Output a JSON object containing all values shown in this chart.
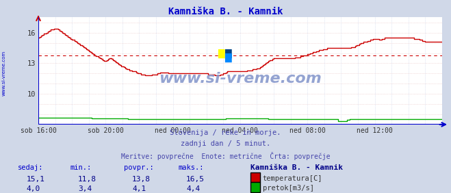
{
  "title": "Kamniška B. - Kamnik",
  "title_color": "#0000cc",
  "bg_color": "#d0d8e8",
  "plot_bg_color": "#ffffff",
  "grid_color_h": "#e8c0c0",
  "grid_color_v": "#c8d0e8",
  "xlabel_ticks": [
    "sob 16:00",
    "sob 20:00",
    "ned 00:00",
    "ned 04:00",
    "ned 08:00",
    "ned 12:00"
  ],
  "yticks": [
    10,
    13,
    16
  ],
  "ylim_min": 7.0,
  "ylim_max": 17.5,
  "xlim_min": 0,
  "xlim_max": 288,
  "tick_positions": [
    0,
    48,
    96,
    144,
    192,
    240
  ],
  "avg_temp": 13.8,
  "watermark_text": "www.si-vreme.com",
  "info_line1": "Slovenija / reke in morje.",
  "info_line2": "zadnji dan / 5 minut.",
  "info_line3": "Meritve: povprečne  Enote: metrične  Črta: povprečje",
  "info_color": "#4444aa",
  "table_headers": [
    "sedaj:",
    "min.:",
    "povpr.:",
    "maks.:"
  ],
  "table_header_color": "#0000cc",
  "table_values_temp": [
    "15,1",
    "11,8",
    "13,8",
    "16,5"
  ],
  "table_values_flow": [
    "4,0",
    "3,4",
    "4,1",
    "4,4"
  ],
  "table_value_color": "#000088",
  "station_label": "Kamniška B. - Kamnik",
  "station_label_color": "#000088",
  "legend_temp_color": "#cc0000",
  "legend_flow_color": "#00aa00",
  "legend_temp_label": "temperatura[C]",
  "legend_flow_label": "pretok[m3/s]",
  "temp_color": "#cc0000",
  "flow_color": "#00aa00",
  "axis_color": "#0000cc",
  "sidebar_color": "#0000cc",
  "sidebar_text": "www.si-vreme.com",
  "temp_data": [
    15.5,
    15.6,
    15.7,
    15.8,
    15.9,
    15.9,
    16.0,
    16.1,
    16.2,
    16.3,
    16.3,
    16.4,
    16.4,
    16.4,
    16.3,
    16.2,
    16.1,
    16.0,
    15.9,
    15.8,
    15.7,
    15.6,
    15.5,
    15.4,
    15.3,
    15.3,
    15.2,
    15.1,
    15.0,
    14.9,
    14.8,
    14.7,
    14.6,
    14.5,
    14.4,
    14.3,
    14.2,
    14.1,
    14.0,
    13.9,
    13.8,
    13.7,
    13.7,
    13.6,
    13.5,
    13.4,
    13.3,
    13.2,
    13.2,
    13.3,
    13.4,
    13.5,
    13.4,
    13.3,
    13.2,
    13.1,
    13.0,
    12.9,
    12.8,
    12.7,
    12.7,
    12.6,
    12.5,
    12.4,
    12.4,
    12.3,
    12.3,
    12.2,
    12.2,
    12.2,
    12.1,
    12.0,
    12.0,
    11.9,
    11.9,
    11.9,
    11.8,
    11.8,
    11.8,
    11.8,
    11.8,
    11.9,
    11.9,
    11.9,
    11.9,
    12.0,
    12.0,
    12.1,
    12.1,
    12.1,
    12.1,
    12.1,
    12.1,
    12.0,
    12.0,
    12.0,
    12.0,
    12.0,
    12.0,
    12.0,
    12.0,
    12.0,
    12.0,
    12.0,
    12.0,
    12.0,
    12.0,
    12.0,
    12.0,
    12.0,
    12.0,
    12.0,
    12.0,
    12.0,
    12.0,
    12.0,
    12.0,
    12.0,
    12.0,
    12.0,
    12.0,
    11.9,
    11.9,
    11.9,
    11.9,
    11.9,
    11.8,
    11.8,
    11.8,
    11.8,
    11.9,
    11.9,
    12.0,
    12.0,
    12.1,
    12.2,
    12.2,
    12.2,
    12.2,
    12.2,
    12.2,
    12.2,
    12.2,
    12.2,
    12.2,
    12.2,
    12.2,
    12.2,
    12.2,
    12.3,
    12.3,
    12.3,
    12.3,
    12.4,
    12.4,
    12.4,
    12.5,
    12.5,
    12.6,
    12.7,
    12.8,
    12.9,
    13.0,
    13.1,
    13.2,
    13.3,
    13.3,
    13.4,
    13.5,
    13.5,
    13.5,
    13.5,
    13.5,
    13.5,
    13.5,
    13.5,
    13.5,
    13.5,
    13.5,
    13.5,
    13.5,
    13.5,
    13.5,
    13.6,
    13.6,
    13.6,
    13.6,
    13.7,
    13.7,
    13.8,
    13.8,
    13.8,
    13.9,
    13.9,
    14.0,
    14.0,
    14.1,
    14.1,
    14.2,
    14.2,
    14.3,
    14.3,
    14.3,
    14.4,
    14.4,
    14.4,
    14.5,
    14.5,
    14.5,
    14.5,
    14.5,
    14.5,
    14.5,
    14.5,
    14.5,
    14.5,
    14.5,
    14.5,
    14.5,
    14.5,
    14.5,
    14.5,
    14.5,
    14.6,
    14.6,
    14.6,
    14.7,
    14.8,
    14.8,
    14.9,
    15.0,
    15.0,
    15.1,
    15.1,
    15.1,
    15.2,
    15.2,
    15.3,
    15.3,
    15.4,
    15.4,
    15.4,
    15.4,
    15.3,
    15.3,
    15.4,
    15.4,
    15.5,
    15.5,
    15.5,
    15.5,
    15.5,
    15.5,
    15.5,
    15.5,
    15.5,
    15.5,
    15.5,
    15.5,
    15.5,
    15.5,
    15.5,
    15.5,
    15.5,
    15.5,
    15.5,
    15.5,
    15.5,
    15.4,
    15.4,
    15.4,
    15.4,
    15.3,
    15.3,
    15.2,
    15.2,
    15.1,
    15.1,
    15.1,
    15.1,
    15.1,
    15.1,
    15.1,
    15.1,
    15.1,
    15.1,
    15.1,
    15.1,
    15.1
  ],
  "flow_data": [
    4.2,
    4.2,
    4.2,
    4.2,
    4.2,
    4.2,
    4.2,
    4.2,
    4.2,
    4.2,
    4.2,
    4.2,
    4.2,
    4.2,
    4.2,
    4.2,
    4.2,
    4.2,
    4.2,
    4.2,
    4.2,
    4.2,
    4.2,
    4.2,
    4.2,
    4.2,
    4.2,
    4.2,
    4.2,
    4.2,
    4.2,
    4.2,
    4.2,
    4.2,
    4.2,
    4.2,
    4.2,
    4.2,
    4.1,
    4.1,
    4.1,
    4.1,
    4.1,
    4.1,
    4.1,
    4.1,
    4.1,
    4.1,
    4.1,
    4.1,
    4.1,
    4.1,
    4.1,
    4.1,
    4.1,
    4.1,
    4.1,
    4.1,
    4.1,
    4.1,
    4.1,
    4.1,
    4.1,
    4.1,
    4.0,
    4.0,
    4.0,
    4.0,
    4.0,
    4.0,
    4.0,
    4.0,
    4.0,
    4.0,
    4.0,
    4.0,
    4.0,
    4.0,
    4.0,
    4.0,
    4.0,
    4.0,
    4.0,
    4.0,
    4.0,
    4.0,
    4.0,
    4.0,
    4.0,
    4.0,
    4.0,
    4.0,
    4.0,
    4.0,
    4.0,
    4.0,
    4.0,
    4.0,
    4.0,
    4.0,
    4.0,
    4.0,
    4.0,
    4.0,
    4.0,
    4.0,
    4.0,
    4.0,
    4.0,
    4.0,
    4.0,
    4.0,
    4.0,
    4.0,
    4.0,
    4.0,
    4.0,
    4.0,
    4.0,
    4.0,
    4.0,
    4.0,
    4.0,
    4.0,
    4.0,
    4.0,
    4.0,
    4.0,
    4.0,
    4.0,
    4.0,
    4.0,
    4.0,
    4.0,
    4.1,
    4.1,
    4.1,
    4.1,
    4.1,
    4.1,
    4.1,
    4.1,
    4.1,
    4.1,
    4.1,
    4.1,
    4.1,
    4.1,
    4.1,
    4.1,
    4.1,
    4.1,
    4.1,
    4.1,
    4.1,
    4.1,
    4.1,
    4.1,
    4.1,
    4.1,
    4.1,
    4.1,
    4.1,
    4.1,
    4.0,
    4.0,
    4.0,
    4.0,
    4.0,
    4.0,
    4.0,
    4.0,
    4.0,
    4.0,
    4.0,
    4.0,
    4.0,
    4.0,
    4.0,
    4.0,
    4.0,
    4.0,
    4.0,
    4.0,
    4.0,
    4.0,
    4.0,
    4.0,
    4.0,
    4.0,
    4.0,
    4.0,
    4.0,
    4.0,
    4.0,
    4.0,
    4.0,
    4.0,
    4.0,
    4.0,
    4.0,
    4.0,
    4.0,
    4.0,
    4.0,
    4.0,
    3.9,
    3.9,
    3.9,
    3.9,
    3.9,
    3.9,
    3.9,
    3.9,
    3.5,
    3.5,
    3.5,
    3.6,
    3.6,
    3.6,
    3.8,
    3.8,
    3.9,
    3.9,
    3.9,
    3.9,
    3.9,
    3.9,
    3.9,
    3.9,
    3.9,
    3.9,
    3.9,
    3.9,
    3.9,
    4.0,
    4.0,
    4.0,
    4.0,
    4.0,
    4.0,
    4.0,
    4.0,
    4.0,
    4.0,
    4.0,
    4.0,
    4.0,
    4.0,
    4.0,
    4.0,
    4.0,
    4.0,
    4.0,
    4.0,
    4.0,
    4.0,
    4.0,
    4.0,
    4.0,
    4.0,
    4.0,
    4.0,
    4.0,
    4.0,
    4.0,
    4.0,
    4.0,
    4.0,
    4.0,
    4.0,
    4.0,
    4.0,
    4.0,
    4.0,
    4.0,
    4.0,
    4.0,
    4.0,
    4.0,
    4.0,
    4.0,
    4.0,
    4.0,
    4.0,
    4.0,
    4.0,
    4.0,
    4.0
  ],
  "flow_display_min": 7.25,
  "flow_display_max": 7.75,
  "flow_raw_min": 3.4,
  "flow_raw_max": 4.4
}
